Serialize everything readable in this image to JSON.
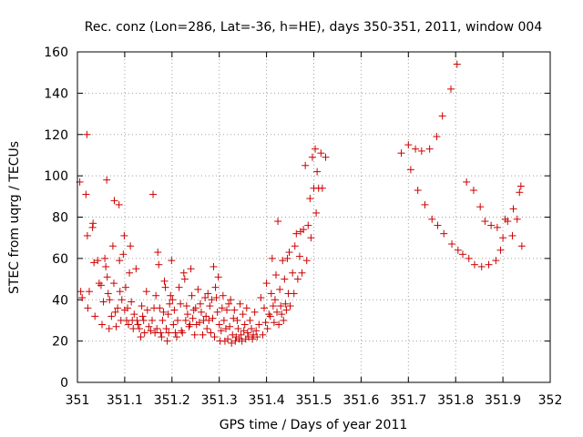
{
  "chart_data": {
    "type": "scatter",
    "title": "Rec. conz (Lon=286, Lat=-36, h=HE), days 350-351, 2011, window 004",
    "xlabel": "GPS time / Days of year 2011",
    "ylabel": "STEC from uqrg / TECUs",
    "xlim": [
      351,
      352
    ],
    "ylim": [
      0,
      160
    ],
    "x_ticks": [
      "351",
      "351.1",
      "351.2",
      "351.3",
      "351.4",
      "351.5",
      "351.6",
      "351.7",
      "351.8",
      "351.9",
      "352"
    ],
    "y_ticks": [
      "0",
      "20",
      "40",
      "60",
      "80",
      "100",
      "120",
      "140",
      "160"
    ],
    "grid": true,
    "marker": "+",
    "color": "#cc0000",
    "series": [
      {
        "points": [
          [
            351.005,
            97
          ],
          [
            351.007,
            44
          ],
          [
            351.01,
            41
          ],
          [
            351.018,
            91
          ],
          [
            351.02,
            120
          ],
          [
            351.021,
            71
          ],
          [
            351.022,
            36
          ],
          [
            351.025,
            44
          ],
          [
            351.032,
            75
          ],
          [
            351.033,
            77
          ],
          [
            351.035,
            58
          ],
          [
            351.037,
            32
          ],
          [
            351.043,
            59
          ],
          [
            351.046,
            48
          ],
          [
            351.05,
            47
          ],
          [
            351.052,
            28
          ],
          [
            351.055,
            39
          ],
          [
            351.058,
            60
          ],
          [
            351.06,
            56
          ],
          [
            351.062,
            98
          ],
          [
            351.063,
            51
          ],
          [
            351.065,
            43
          ],
          [
            351.067,
            26
          ],
          [
            351.068,
            40
          ],
          [
            351.072,
            32
          ],
          [
            351.075,
            66
          ],
          [
            351.077,
            48
          ],
          [
            351.078,
            88
          ],
          [
            351.08,
            34
          ],
          [
            351.082,
            27
          ],
          [
            351.085,
            36
          ],
          [
            351.088,
            86
          ],
          [
            351.089,
            59
          ],
          [
            351.09,
            44
          ],
          [
            351.092,
            30
          ],
          [
            351.094,
            40
          ],
          [
            351.097,
            62
          ],
          [
            351.099,
            71
          ],
          [
            351.1,
            35
          ],
          [
            351.102,
            46
          ],
          [
            351.104,
            30
          ],
          [
            351.106,
            36
          ],
          [
            351.108,
            28
          ],
          [
            351.11,
            53
          ],
          [
            351.112,
            66
          ],
          [
            351.114,
            39
          ],
          [
            351.116,
            30
          ],
          [
            351.118,
            26
          ],
          [
            351.12,
            33
          ],
          [
            351.124,
            55
          ],
          [
            351.126,
            30
          ],
          [
            351.128,
            28
          ],
          [
            351.131,
            26
          ],
          [
            351.134,
            22
          ],
          [
            351.136,
            37
          ],
          [
            351.138,
            32
          ],
          [
            351.14,
            30
          ],
          [
            351.142,
            24
          ],
          [
            351.146,
            44
          ],
          [
            351.148,
            35
          ],
          [
            351.151,
            27
          ],
          [
            351.155,
            25
          ],
          [
            351.158,
            30
          ],
          [
            351.16,
            91
          ],
          [
            351.162,
            36
          ],
          [
            351.164,
            24
          ],
          [
            351.166,
            42
          ],
          [
            351.168,
            26
          ],
          [
            351.17,
            63
          ],
          [
            351.172,
            57
          ],
          [
            351.174,
            36
          ],
          [
            351.176,
            24
          ],
          [
            351.178,
            22
          ],
          [
            351.18,
            30
          ],
          [
            351.182,
            34
          ],
          [
            351.184,
            49
          ],
          [
            351.186,
            46
          ],
          [
            351.188,
            26
          ],
          [
            351.19,
            20
          ],
          [
            351.192,
            33
          ],
          [
            351.193,
            24
          ],
          [
            351.195,
            38
          ],
          [
            351.197,
            42
          ],
          [
            351.199,
            59
          ],
          [
            351.201,
            40
          ],
          [
            351.203,
            28
          ],
          [
            351.205,
            35
          ],
          [
            351.207,
            24
          ],
          [
            351.21,
            22
          ],
          [
            351.212,
            30
          ],
          [
            351.215,
            46
          ],
          [
            351.218,
            38
          ],
          [
            351.22,
            25
          ],
          [
            351.222,
            24
          ],
          [
            351.225,
            53
          ],
          [
            351.227,
            50
          ],
          [
            351.229,
            30
          ],
          [
            351.231,
            37
          ],
          [
            351.233,
            33
          ],
          [
            351.236,
            27
          ],
          [
            351.238,
            28
          ],
          [
            351.24,
            55
          ],
          [
            351.242,
            42
          ],
          [
            351.244,
            31
          ],
          [
            351.246,
            35
          ],
          [
            351.248,
            23
          ],
          [
            351.25,
            36
          ],
          [
            351.252,
            28
          ],
          [
            351.255,
            45
          ],
          [
            351.258,
            29
          ],
          [
            351.26,
            38
          ],
          [
            351.262,
            34
          ],
          [
            351.265,
            23
          ],
          [
            351.267,
            30
          ],
          [
            351.27,
            41
          ],
          [
            351.272,
            32
          ],
          [
            351.274,
            26
          ],
          [
            351.276,
            43
          ],
          [
            351.278,
            30
          ],
          [
            351.28,
            37
          ],
          [
            351.282,
            24
          ],
          [
            351.284,
            40
          ],
          [
            351.286,
            31
          ],
          [
            351.288,
            56
          ],
          [
            351.29,
            22
          ],
          [
            351.292,
            46
          ],
          [
            351.294,
            41
          ],
          [
            351.296,
            34
          ],
          [
            351.298,
            51
          ],
          [
            351.3,
            28
          ],
          [
            351.302,
            20
          ],
          [
            351.304,
            25
          ],
          [
            351.306,
            36
          ],
          [
            351.308,
            42
          ],
          [
            351.31,
            30
          ],
          [
            351.312,
            20
          ],
          [
            351.314,
            26
          ],
          [
            351.316,
            35
          ],
          [
            351.318,
            21
          ],
          [
            351.32,
            38
          ],
          [
            351.322,
            27
          ],
          [
            351.324,
            40
          ],
          [
            351.326,
            19
          ],
          [
            351.328,
            23
          ],
          [
            351.33,
            31
          ],
          [
            351.332,
            35
          ],
          [
            351.334,
            20
          ],
          [
            351.336,
            22
          ],
          [
            351.338,
            30
          ],
          [
            351.34,
            26
          ],
          [
            351.342,
            21
          ],
          [
            351.344,
            38
          ],
          [
            351.346,
            23
          ],
          [
            351.348,
            20
          ],
          [
            351.35,
            33
          ],
          [
            351.352,
            25
          ],
          [
            351.354,
            28
          ],
          [
            351.356,
            21
          ],
          [
            351.358,
            36
          ],
          [
            351.36,
            24
          ],
          [
            351.362,
            22
          ],
          [
            351.365,
            30
          ],
          [
            351.368,
            26
          ],
          [
            351.37,
            21
          ],
          [
            351.372,
            23
          ],
          [
            351.375,
            34
          ],
          [
            351.378,
            25
          ],
          [
            351.38,
            22
          ],
          [
            351.384,
            28
          ],
          [
            351.388,
            41
          ],
          [
            351.392,
            23
          ],
          [
            351.395,
            36
          ],
          [
            351.398,
            29
          ],
          [
            351.4,
            48
          ],
          [
            351.402,
            26
          ],
          [
            351.405,
            33
          ],
          [
            351.408,
            32
          ],
          [
            351.41,
            43
          ],
          [
            351.412,
            60
          ],
          [
            351.414,
            37
          ],
          [
            351.416,
            29
          ],
          [
            351.418,
            40
          ],
          [
            351.42,
            52
          ],
          [
            351.422,
            34
          ],
          [
            351.424,
            78
          ],
          [
            351.426,
            28
          ],
          [
            351.428,
            45
          ],
          [
            351.43,
            37
          ],
          [
            351.432,
            33
          ],
          [
            351.434,
            59
          ],
          [
            351.436,
            30
          ],
          [
            351.438,
            50
          ],
          [
            351.44,
            38
          ],
          [
            351.442,
            35
          ],
          [
            351.444,
            60
          ],
          [
            351.446,
            43
          ],
          [
            351.448,
            63
          ],
          [
            351.45,
            37
          ],
          [
            351.455,
            53
          ],
          [
            351.458,
            43
          ],
          [
            351.46,
            66
          ],
          [
            351.463,
            72
          ],
          [
            351.466,
            50
          ],
          [
            351.47,
            61
          ],
          [
            351.472,
            73
          ],
          [
            351.475,
            53
          ],
          [
            351.478,
            74
          ],
          [
            351.482,
            105
          ],
          [
            351.485,
            59
          ],
          [
            351.488,
            76
          ],
          [
            351.492,
            89
          ],
          [
            351.494,
            70
          ],
          [
            351.497,
            109
          ],
          [
            351.5,
            94
          ],
          [
            351.503,
            113
          ],
          [
            351.505,
            82
          ],
          [
            351.507,
            102
          ],
          [
            351.51,
            94
          ],
          [
            351.515,
            111
          ],
          [
            351.518,
            94
          ],
          [
            351.525,
            109
          ],
          [
            351.685,
            111
          ],
          [
            351.7,
            115
          ],
          [
            351.705,
            103
          ],
          [
            351.715,
            113
          ],
          [
            351.72,
            93
          ],
          [
            351.728,
            112
          ],
          [
            351.735,
            86
          ],
          [
            351.745,
            113
          ],
          [
            351.75,
            79
          ],
          [
            351.76,
            119
          ],
          [
            351.762,
            76
          ],
          [
            351.772,
            129
          ],
          [
            351.775,
            72
          ],
          [
            351.79,
            142
          ],
          [
            351.792,
            67
          ],
          [
            351.803,
            154
          ],
          [
            351.805,
            64
          ],
          [
            351.815,
            62
          ],
          [
            351.823,
            97
          ],
          [
            351.828,
            60
          ],
          [
            351.838,
            93
          ],
          [
            351.84,
            57
          ],
          [
            351.852,
            85
          ],
          [
            351.855,
            56
          ],
          [
            351.862,
            78
          ],
          [
            351.87,
            57
          ],
          [
            351.875,
            76
          ],
          [
            351.885,
            59
          ],
          [
            351.888,
            75
          ],
          [
            351.895,
            64
          ],
          [
            351.9,
            70
          ],
          [
            351.905,
            79
          ],
          [
            351.91,
            78
          ],
          [
            351.92,
            71
          ],
          [
            351.922,
            84
          ],
          [
            351.93,
            79
          ],
          [
            351.935,
            92
          ],
          [
            351.938,
            95
          ],
          [
            351.94,
            66
          ]
        ]
      }
    ]
  }
}
